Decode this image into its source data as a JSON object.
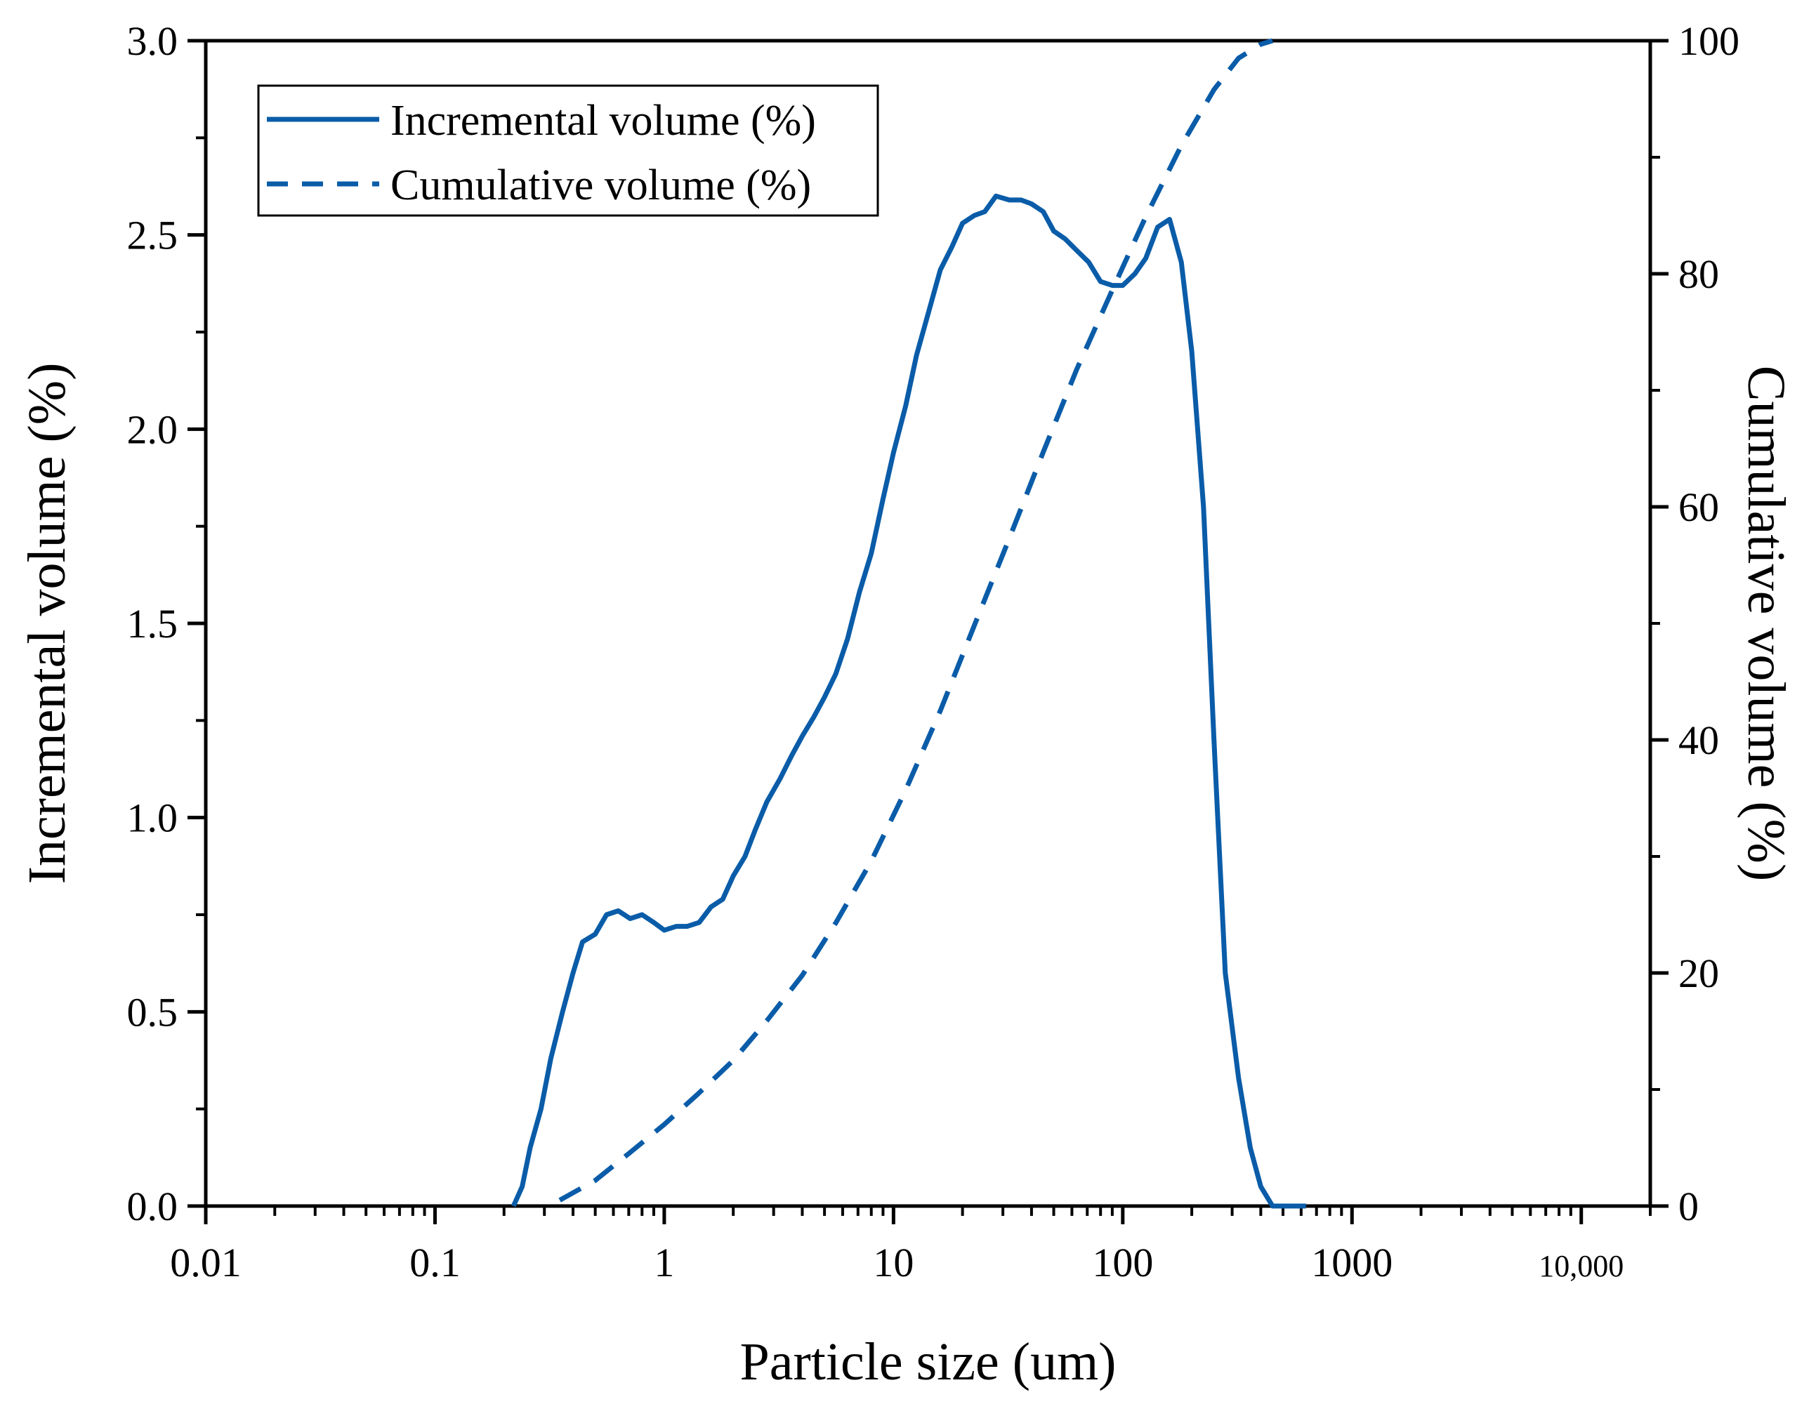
{
  "chart_data": {
    "type": "line",
    "xlabel": "Particle size (um)",
    "ylabel_left": "Incremental volume (%)",
    "ylabel_right": "Cumulative volume (%)",
    "x_scale": "log",
    "xlim": [
      0.01,
      20000
    ],
    "x_ticks": [
      {
        "value": 0.01,
        "label": "0.01"
      },
      {
        "value": 0.1,
        "label": "0.1"
      },
      {
        "value": 1,
        "label": "1"
      },
      {
        "value": 10,
        "label": "10"
      },
      {
        "value": 100,
        "label": "100"
      },
      {
        "value": 1000,
        "label": "1000"
      },
      {
        "value": 10000,
        "label": "10,000"
      }
    ],
    "ylim_left": [
      0,
      3.0
    ],
    "y_ticks_left": [
      "0.0",
      "0.5",
      "1.0",
      "1.5",
      "2.0",
      "2.5",
      "3.0"
    ],
    "ylim_right": [
      0,
      100
    ],
    "y_ticks_right": [
      "0",
      "20",
      "40",
      "60",
      "80",
      "100"
    ],
    "grid": false,
    "legend_position": "top-left",
    "line_color": "#0a5ca8",
    "series": [
      {
        "name": "Incremental volume (%)",
        "axis": "left",
        "style": "solid",
        "x": [
          0.22,
          0.24,
          0.26,
          0.29,
          0.32,
          0.36,
          0.4,
          0.44,
          0.5,
          0.56,
          0.63,
          0.71,
          0.8,
          0.9,
          1.0,
          1.13,
          1.26,
          1.42,
          1.6,
          1.8,
          2.0,
          2.25,
          2.5,
          2.8,
          3.2,
          3.6,
          4.0,
          4.5,
          5.0,
          5.6,
          6.3,
          7.1,
          8.0,
          9.0,
          10,
          11.3,
          12.6,
          14.2,
          16,
          18,
          20,
          22.5,
          25,
          28,
          32,
          36,
          40,
          45,
          50,
          56,
          63,
          71,
          80,
          90,
          100,
          113,
          126,
          142,
          160,
          180,
          200,
          225,
          250,
          280,
          320,
          360,
          400,
          450,
          500,
          560,
          630
        ],
        "y": [
          0.0,
          0.05,
          0.15,
          0.25,
          0.38,
          0.5,
          0.6,
          0.68,
          0.7,
          0.75,
          0.76,
          0.74,
          0.75,
          0.73,
          0.71,
          0.72,
          0.72,
          0.73,
          0.77,
          0.79,
          0.85,
          0.9,
          0.97,
          1.04,
          1.1,
          1.16,
          1.21,
          1.26,
          1.31,
          1.37,
          1.46,
          1.58,
          1.68,
          1.82,
          1.94,
          2.06,
          2.19,
          2.3,
          2.41,
          2.47,
          2.53,
          2.55,
          2.56,
          2.6,
          2.59,
          2.59,
          2.58,
          2.56,
          2.51,
          2.49,
          2.46,
          2.43,
          2.38,
          2.37,
          2.37,
          2.4,
          2.44,
          2.52,
          2.54,
          2.43,
          2.2,
          1.8,
          1.2,
          0.6,
          0.33,
          0.15,
          0.05,
          0.0,
          0.0,
          0.0,
          0.0
        ]
      },
      {
        "name": "Cumulative volume (%)",
        "axis": "right",
        "style": "dashed",
        "x": [
          0.35,
          0.5,
          0.7,
          1.0,
          1.4,
          2.0,
          2.8,
          4.0,
          5.6,
          8.0,
          11.3,
          16,
          22.5,
          32,
          45,
          63,
          90,
          126,
          180,
          250,
          320,
          400,
          450
        ],
        "y": [
          0.5,
          2.2,
          4.5,
          7.0,
          9.6,
          12.5,
          15.9,
          19.8,
          24.3,
          29.6,
          35.7,
          42.5,
          49.8,
          57.3,
          64.7,
          71.8,
          78.6,
          84.9,
          91.0,
          95.8,
          98.5,
          99.7,
          100.0
        ]
      }
    ]
  }
}
